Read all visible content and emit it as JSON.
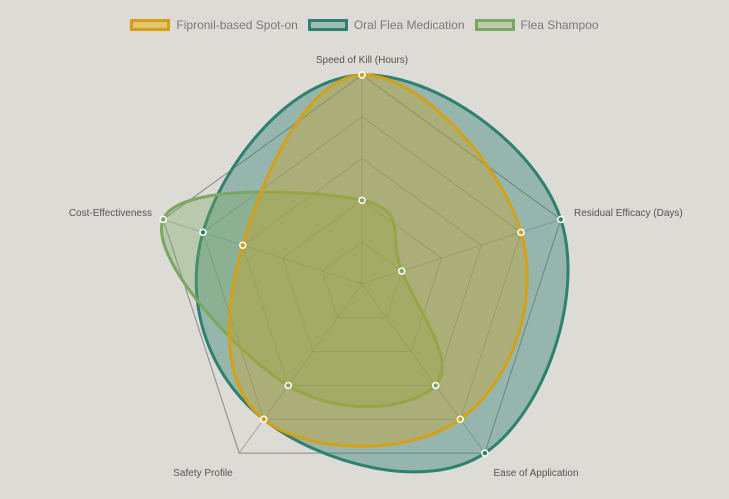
{
  "chart_data": {
    "type": "radar",
    "title": "",
    "categories": [
      "Speed of Kill (Hours)",
      "Residual Efficacy (Days)",
      "Ease of Application",
      "Safety Profile",
      "Cost-Effectiveness"
    ],
    "scale": {
      "min": 0,
      "max": 5,
      "step": 1,
      "ticks_visible": false
    },
    "legend_position": "top",
    "series": [
      {
        "name": "Fipronil-based Spot-on",
        "values": [
          5,
          4,
          4,
          4,
          3
        ],
        "border": "#d4a017",
        "fill": "rgba(212,160,23,0.35)"
      },
      {
        "name": "Oral Flea Medication",
        "values": [
          5,
          5,
          5,
          4,
          4
        ],
        "border": "#2e8070",
        "fill": "rgba(46,128,112,0.40)"
      },
      {
        "name": "Flea Shampoo",
        "values": [
          2,
          1,
          3,
          3,
          5
        ],
        "border": "#79a862",
        "fill": "rgba(121,168,98,0.35)"
      }
    ]
  },
  "legend": {
    "items": [
      {
        "label": "Fipronil-based Spot-on",
        "border": "#d4a017",
        "fill": "#e3c56d"
      },
      {
        "label": "Oral Flea Medication",
        "border": "#2e8070",
        "fill": "#9ebcb2"
      },
      {
        "label": "Flea Shampoo",
        "border": "#79a862",
        "fill": "#bccca7"
      }
    ]
  },
  "axes": {
    "labels": [
      "Speed of Kill (Hours)",
      "Residual Efficacy (Days)",
      "Ease of Application",
      "Safety Profile",
      "Cost-Effectiveness"
    ]
  }
}
